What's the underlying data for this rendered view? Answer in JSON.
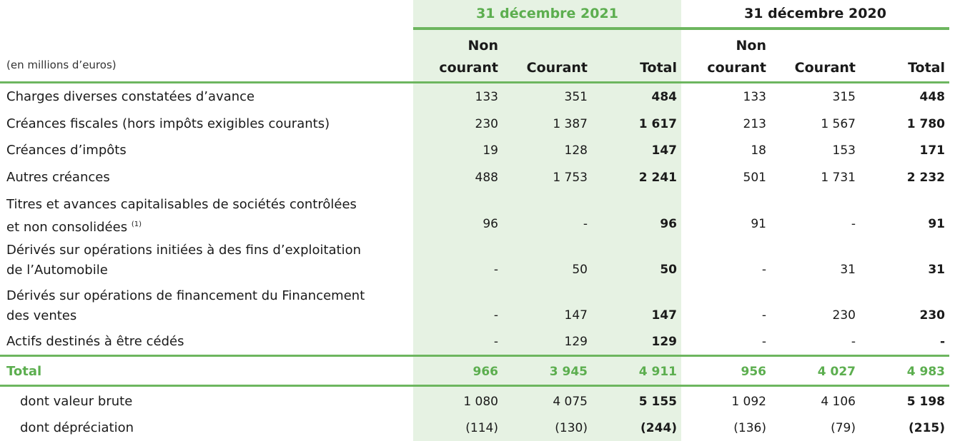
{
  "headers": {
    "period_2021": "31 décembre 2021",
    "period_2020": "31 décembre 2020",
    "units": "(en millions d’euros)",
    "non_courant_line1": "Non",
    "non_courant_line2": "courant",
    "courant": "Courant",
    "total": "Total"
  },
  "rows": [
    {
      "label": "Charges diverses constatées d’avance",
      "v": [
        "133",
        "351",
        "484",
        "133",
        "315",
        "448"
      ]
    },
    {
      "label": "Créances fiscales (hors impôts exigibles courants)",
      "v": [
        "230",
        "1 387",
        "1 617",
        "213",
        "1 567",
        "1 780"
      ]
    },
    {
      "label": "Créances d’impôts",
      "v": [
        "19",
        "128",
        "147",
        "18",
        "153",
        "171"
      ]
    },
    {
      "label": "Autres créances",
      "v": [
        "488",
        "1 753",
        "2 241",
        "501",
        "1 731",
        "2 232"
      ]
    },
    {
      "label_line1": "Titres et avances capitalisables de sociétés contrôlées",
      "label_line2": "et non consolidées",
      "note": "(1)",
      "v": [
        "96",
        "-",
        "96",
        "91",
        "-",
        "91"
      ]
    },
    {
      "label_line1": "Dérivés sur opérations initiées à des fins d’exploitation",
      "label_line2": "de l’Automobile",
      "v": [
        "-",
        "50",
        "50",
        "-",
        "31",
        "31"
      ]
    },
    {
      "label_line1": "Dérivés sur opérations de financement du Financement",
      "label_line2": "des ventes",
      "v": [
        "-",
        "147",
        "147",
        "-",
        "230",
        "230"
      ]
    },
    {
      "label": "Actifs destinés à être cédés",
      "v": [
        "-",
        "129",
        "129",
        "-",
        "-",
        "-"
      ]
    }
  ],
  "total": {
    "label": "Total",
    "v": [
      "966",
      "3 945",
      "4 911",
      "956",
      "4 027",
      "4 983"
    ]
  },
  "sub_rows": [
    {
      "label": "dont valeur brute",
      "v": [
        "1 080",
        "4 075",
        "5 155",
        "1 092",
        "4 106",
        "5 198"
      ]
    },
    {
      "label": "dont dépréciation",
      "v": [
        "(114)",
        "(130)",
        "(244)",
        "(136)",
        "(79)",
        "(215)"
      ]
    }
  ],
  "colors": {
    "accent_green": "#5cae4f",
    "shade": "#e6f2e3",
    "rule": "#6db65f"
  }
}
